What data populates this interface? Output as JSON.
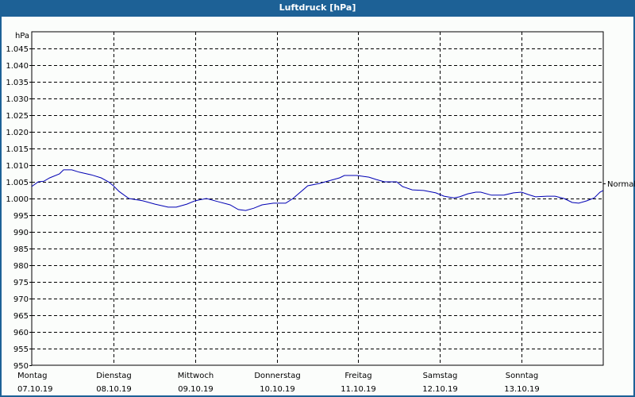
{
  "window": {
    "title": "Luftdruck [hPa]",
    "title_bg": "#1d6196",
    "border_color": "#1d6196",
    "background": "#fbfdfb"
  },
  "chart_data": {
    "type": "line",
    "title": "Luftdruck [hPa]",
    "ylabel": "hPa",
    "xlabel": "",
    "ylim": [
      950,
      1050
    ],
    "y_ticks": [
      950,
      955,
      960,
      965,
      970,
      975,
      980,
      985,
      990,
      995,
      1000,
      1005,
      1010,
      1015,
      1020,
      1025,
      1030,
      1035,
      1040,
      1045
    ],
    "y_tick_labels": [
      "950",
      "955",
      "960",
      "965",
      "970",
      "975",
      "980",
      "985",
      "990",
      "995",
      "1.000",
      "1.005",
      "1.010",
      "1.015",
      "1.020",
      "1.025",
      "1.030",
      "1.035",
      "1.040",
      "1.045"
    ],
    "grid": true,
    "x_unit": "days since Montag 07.10.19 00:00",
    "xlim": [
      0,
      7
    ],
    "x_ticks": [
      {
        "day": "Montag",
        "date": "07.10.19"
      },
      {
        "day": "Dienstag",
        "date": "08.10.19"
      },
      {
        "day": "Mittwoch",
        "date": "09.10.19"
      },
      {
        "day": "Donnerstag",
        "date": "10.10.19"
      },
      {
        "day": "Freitag",
        "date": "11.10.19"
      },
      {
        "day": "Samstag",
        "date": "12.10.19"
      },
      {
        "day": "Sonntag",
        "date": "13.10.19"
      }
    ],
    "reference_line": {
      "label": "Normal",
      "value": 1004.5
    },
    "series": [
      {
        "name": "Luftdruck",
        "color": "#0000b4",
        "x": [
          0,
          0.08,
          0.15,
          0.22,
          0.34,
          0.39,
          0.49,
          0.58,
          0.73,
          0.85,
          0.94,
          1.0,
          1.07,
          1.19,
          1.36,
          1.51,
          1.67,
          1.77,
          1.9,
          2.0,
          2.14,
          2.29,
          2.43,
          2.53,
          2.62,
          2.72,
          2.82,
          2.96,
          3.11,
          3.2,
          3.28,
          3.38,
          3.52,
          3.67,
          3.77,
          3.83,
          3.98,
          4.13,
          4.22,
          4.32,
          4.47,
          4.54,
          4.66,
          4.8,
          4.95,
          5.05,
          5.17,
          5.24,
          5.34,
          5.44,
          5.5,
          5.63,
          5.78,
          5.9,
          6.0,
          6.08,
          6.17,
          6.31,
          6.41,
          6.52,
          6.62,
          6.7,
          6.8,
          6.89,
          6.96,
          7.0
        ],
        "y": [
          1003.6,
          1005.0,
          1005.2,
          1006.2,
          1007.4,
          1008.6,
          1008.6,
          1007.9,
          1007.1,
          1006.2,
          1005.0,
          1003.8,
          1002.1,
          1000.0,
          999.3,
          998.3,
          997.4,
          997.4,
          998.3,
          999.3,
          1000.0,
          999.0,
          998.1,
          996.7,
          996.4,
          997.1,
          998.1,
          998.6,
          998.6,
          1000.0,
          1001.7,
          1003.8,
          1004.5,
          1005.5,
          1006.2,
          1006.9,
          1006.9,
          1006.4,
          1005.7,
          1005.0,
          1005.0,
          1003.6,
          1002.6,
          1002.4,
          1001.7,
          1000.7,
          1000.2,
          1000.5,
          1001.4,
          1001.9,
          1001.9,
          1001.0,
          1001.0,
          1001.7,
          1001.9,
          1001.2,
          1000.5,
          1000.7,
          1000.7,
          1000.0,
          998.8,
          998.6,
          999.3,
          1000.2,
          1001.9,
          1002.4
        ]
      }
    ]
  }
}
